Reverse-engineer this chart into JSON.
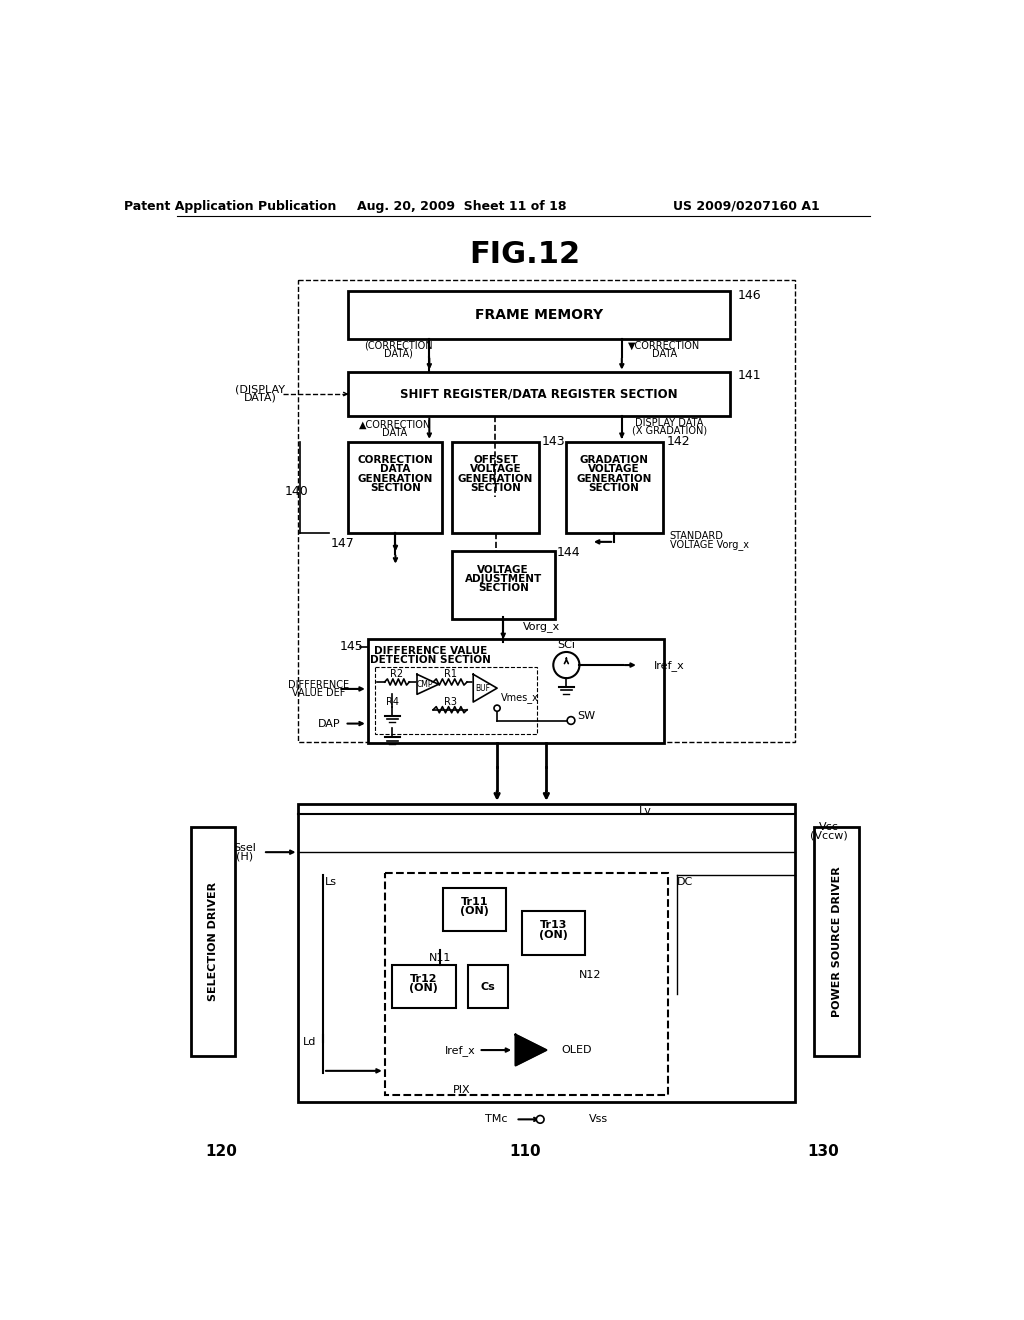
{
  "title": "FIG.12",
  "header_left": "Patent Application Publication",
  "header_center": "Aug. 20, 2009  Sheet 11 of 18",
  "header_right": "US 2009/0207160 A1",
  "bg_color": "#ffffff",
  "line_color": "#000000"
}
